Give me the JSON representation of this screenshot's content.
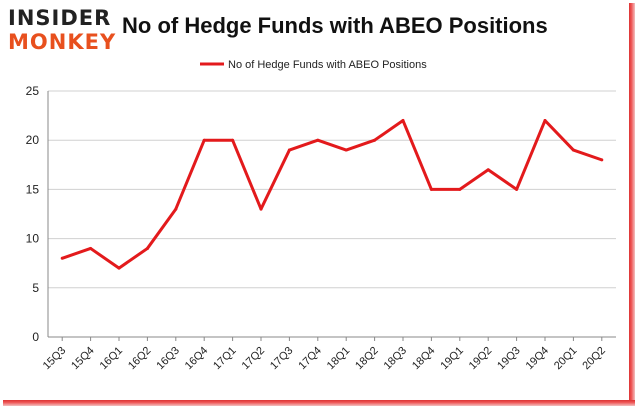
{
  "logo": {
    "line1": "INSIDER",
    "line2": "MONKEY"
  },
  "chart_data": {
    "type": "line",
    "title": "No of Hedge Funds with ABEO Positions",
    "xlabel": "",
    "ylabel": "",
    "categories": [
      "15Q3",
      "15Q4",
      "16Q1",
      "16Q2",
      "16Q3",
      "16Q4",
      "17Q1",
      "17Q2",
      "17Q3",
      "17Q4",
      "18Q1",
      "18Q2",
      "18Q3",
      "18Q4",
      "19Q1",
      "19Q2",
      "19Q3",
      "19Q4",
      "20Q1",
      "20Q2"
    ],
    "series": [
      {
        "name": "No of Hedge Funds with ABEO Positions",
        "values": [
          8,
          9,
          7,
          9,
          13,
          20,
          20,
          13,
          19,
          20,
          19,
          20,
          22,
          15,
          15,
          17,
          15,
          22,
          19,
          18
        ],
        "color": "#e31a1c"
      }
    ],
    "ylim": [
      0,
      25
    ],
    "yticks": [
      0,
      5,
      10,
      15,
      20,
      25
    ],
    "grid": true,
    "legend_position": "top-center"
  }
}
